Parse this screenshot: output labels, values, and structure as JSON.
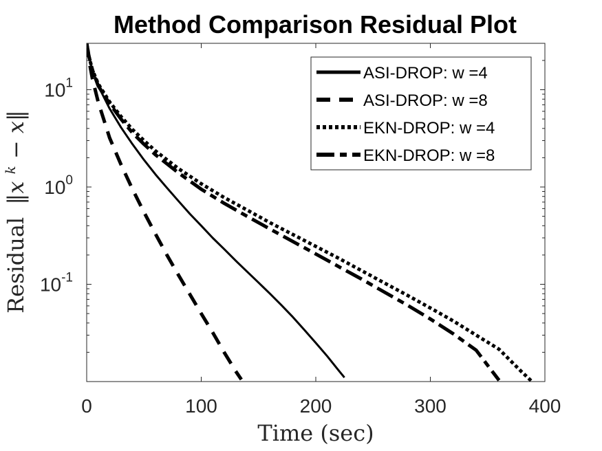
{
  "chart_data": {
    "type": "line",
    "title": "Method Comparison Residual Plot",
    "xlabel": "Time (sec)",
    "ylabel": "Residual ||x^k − x||",
    "ylabel_parts": {
      "word": "Residual",
      "norm": "‖x",
      "sup": "k",
      "rest": " − x‖"
    },
    "xscale": "linear",
    "yscale": "log",
    "xlim": [
      0,
      400
    ],
    "ylim": [
      0.01,
      30
    ],
    "xticks": [
      0,
      100,
      200,
      300,
      400
    ],
    "xtick_labels": [
      "0",
      "100",
      "200",
      "300",
      "400"
    ],
    "yticks": [
      {
        "value": 0.1,
        "base": "10",
        "exp": "-1"
      },
      {
        "value": 1,
        "base": "10",
        "exp": "0"
      },
      {
        "value": 10,
        "base": "10",
        "exp": "1"
      }
    ],
    "grid": false,
    "legend_position": "top-right",
    "series": [
      {
        "name": "ASI-DROP: w =4",
        "style": "solid",
        "x": [
          0,
          2,
          5,
          10,
          20,
          30,
          40,
          50,
          60,
          70,
          80,
          90,
          100,
          110,
          120,
          130,
          140,
          150,
          160,
          170,
          180,
          190,
          200,
          210,
          220,
          225
        ],
        "y": [
          30,
          22,
          16,
          11,
          6.4,
          4.1,
          2.75,
          1.9,
          1.35,
          0.98,
          0.72,
          0.53,
          0.4,
          0.3,
          0.23,
          0.175,
          0.135,
          0.104,
          0.08,
          0.061,
          0.046,
          0.034,
          0.025,
          0.0182,
          0.013,
          0.011
        ]
      },
      {
        "name": "ASI-DROP: w =8",
        "style": "dashed",
        "x": [
          0,
          2,
          5,
          10,
          20,
          30,
          40,
          50,
          60,
          70,
          80,
          90,
          100,
          110,
          120,
          130,
          135
        ],
        "y": [
          30,
          20,
          13,
          7.5,
          3.2,
          1.7,
          0.95,
          0.55,
          0.33,
          0.2,
          0.125,
          0.079,
          0.05,
          0.032,
          0.02,
          0.0128,
          0.0105
        ]
      },
      {
        "name": "EKN-DROP: w =4",
        "style": "dotted",
        "x": [
          0,
          2,
          5,
          10,
          20,
          30,
          40,
          50,
          60,
          80,
          100,
          120,
          140,
          160,
          180,
          200,
          220,
          240,
          260,
          280,
          300,
          320,
          340,
          360,
          380,
          388
        ],
        "y": [
          30,
          22,
          16,
          11.5,
          7.5,
          5.3,
          3.9,
          3.0,
          2.35,
          1.55,
          1.08,
          0.78,
          0.58,
          0.43,
          0.325,
          0.245,
          0.185,
          0.138,
          0.103,
          0.077,
          0.057,
          0.042,
          0.03,
          0.0215,
          0.0125,
          0.0102
        ]
      },
      {
        "name": "EKN-DROP: w =8",
        "style": "dashdot",
        "x": [
          0,
          2,
          5,
          10,
          20,
          30,
          40,
          50,
          60,
          80,
          100,
          120,
          140,
          160,
          180,
          200,
          220,
          240,
          260,
          280,
          300,
          320,
          340,
          360
        ],
        "y": [
          30,
          22,
          16,
          11,
          7.2,
          5.0,
          3.6,
          2.75,
          2.15,
          1.4,
          0.95,
          0.68,
          0.5,
          0.37,
          0.275,
          0.205,
          0.152,
          0.113,
          0.083,
          0.061,
          0.044,
          0.031,
          0.021,
          0.0103
        ]
      }
    ]
  }
}
